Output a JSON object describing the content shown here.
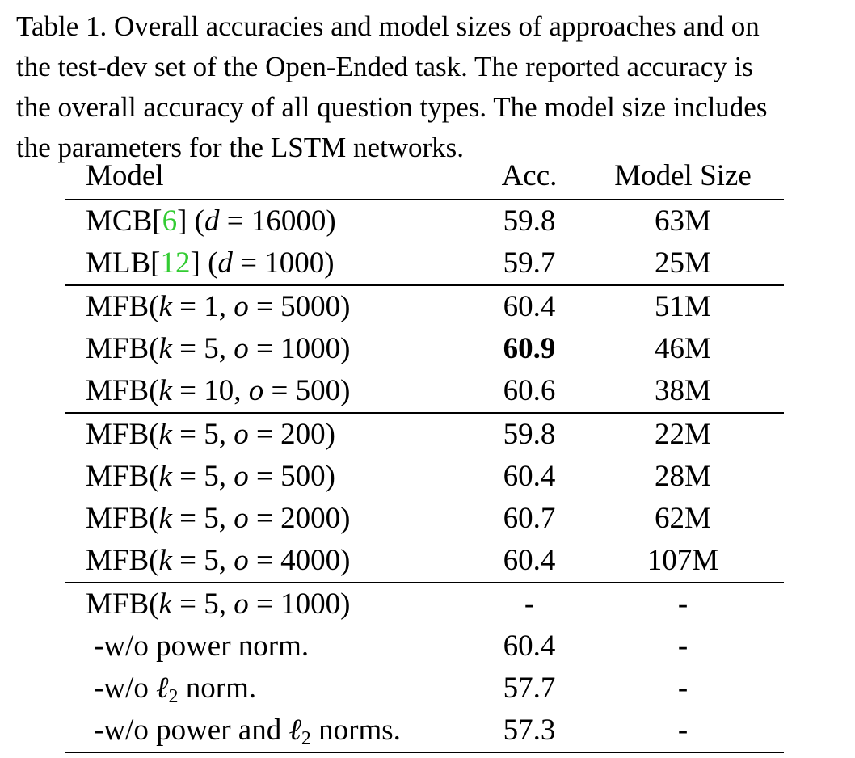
{
  "caption": {
    "lines": [
      "Table 1. Overall accuracies and model sizes of approaches and on",
      "the test-dev set of the Open-Ended task. The reported accuracy is",
      "the overall accuracy of all question types. The model size includes",
      "the parameters for the LSTM networks."
    ]
  },
  "table": {
    "headers": {
      "model": "Model",
      "acc": "Acc.",
      "size": "Model Size"
    },
    "refs": {
      "mcb": "6",
      "mlb": "12"
    },
    "rows": [
      {
        "acc": "59.8",
        "size": "63M"
      },
      {
        "acc": "59.7",
        "size": "25M"
      },
      {
        "acc": "60.4",
        "size": "51M"
      },
      {
        "acc": "60.9",
        "size": "46M"
      },
      {
        "acc": "60.6",
        "size": "38M"
      },
      {
        "acc": "59.8",
        "size": "22M"
      },
      {
        "acc": "60.4",
        "size": "28M"
      },
      {
        "acc": "60.7",
        "size": "62M"
      },
      {
        "acc": "60.4",
        "size": "107M"
      },
      {
        "acc": "-",
        "size": "-"
      },
      {
        "acc": "60.4",
        "size": "-"
      },
      {
        "acc": "57.7",
        "size": "-"
      },
      {
        "acc": "57.3",
        "size": "-"
      }
    ],
    "model_labels": [
      "MCB[6] (d = 16000)",
      "MLB[12] (d = 1000)",
      "MFB(k = 1, o = 5000)",
      "MFB(k = 5, o = 1000)",
      "MFB(k = 10, o = 500)",
      "MFB(k = 5, o = 200)",
      "MFB(k = 5, o = 500)",
      "MFB(k = 5, o = 2000)",
      "MFB(k = 5, o = 4000)",
      "MFB(k = 5, o = 1000)",
      "-w/o power norm.",
      "-w/o ℓ2 norm.",
      "-w/o power and ℓ2 norms."
    ]
  }
}
